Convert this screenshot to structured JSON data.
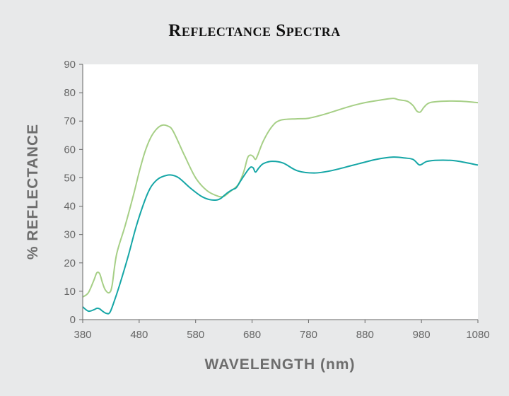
{
  "chart_data": {
    "type": "line",
    "title": "Reflectance Spectra",
    "xlabel": "WAVELENGTH (nm)",
    "ylabel": "% REFLECTANCE",
    "xlim": [
      380,
      1080
    ],
    "ylim": [
      0,
      90
    ],
    "xticks": [
      380,
      480,
      580,
      680,
      780,
      880,
      980,
      1080
    ],
    "yticks": [
      0,
      10,
      20,
      30,
      40,
      50,
      60,
      70,
      80,
      90
    ],
    "grid": false,
    "series": [
      {
        "color": "#a6cf86",
        "points": [
          [
            380,
            8
          ],
          [
            390,
            9.5
          ],
          [
            400,
            14
          ],
          [
            405,
            16.5
          ],
          [
            410,
            16.2
          ],
          [
            415,
            13
          ],
          [
            420,
            10.5
          ],
          [
            427,
            9.5
          ],
          [
            432,
            12
          ],
          [
            440,
            23
          ],
          [
            455,
            33
          ],
          [
            470,
            44
          ],
          [
            480,
            52
          ],
          [
            490,
            59
          ],
          [
            500,
            64
          ],
          [
            510,
            67
          ],
          [
            520,
            68.5
          ],
          [
            530,
            68.3
          ],
          [
            540,
            66.5
          ],
          [
            560,
            58
          ],
          [
            580,
            50
          ],
          [
            600,
            45.5
          ],
          [
            620,
            43.5
          ],
          [
            630,
            43.5
          ],
          [
            640,
            45
          ],
          [
            655,
            47.5
          ],
          [
            665,
            52
          ],
          [
            672,
            57
          ],
          [
            677,
            58
          ],
          [
            682,
            57.5
          ],
          [
            686,
            56.5
          ],
          [
            690,
            58
          ],
          [
            700,
            63
          ],
          [
            715,
            68
          ],
          [
            730,
            70.3
          ],
          [
            760,
            70.8
          ],
          [
            780,
            71
          ],
          [
            810,
            72.5
          ],
          [
            850,
            75
          ],
          [
            880,
            76.5
          ],
          [
            910,
            77.5
          ],
          [
            930,
            78
          ],
          [
            940,
            77.5
          ],
          [
            955,
            77
          ],
          [
            965,
            75.5
          ],
          [
            972,
            73.5
          ],
          [
            978,
            73.2
          ],
          [
            985,
            75
          ],
          [
            995,
            76.5
          ],
          [
            1020,
            77
          ],
          [
            1050,
            77
          ],
          [
            1080,
            76.5
          ]
        ]
      },
      {
        "color": "#15a6a6",
        "points": [
          [
            380,
            4.5
          ],
          [
            390,
            3
          ],
          [
            400,
            3.5
          ],
          [
            405,
            4
          ],
          [
            410,
            3.8
          ],
          [
            415,
            3
          ],
          [
            422,
            2.2
          ],
          [
            428,
            2.5
          ],
          [
            435,
            6
          ],
          [
            445,
            12
          ],
          [
            460,
            22
          ],
          [
            475,
            33
          ],
          [
            490,
            42
          ],
          [
            500,
            46.5
          ],
          [
            510,
            49
          ],
          [
            520,
            50.3
          ],
          [
            535,
            51
          ],
          [
            550,
            50
          ],
          [
            570,
            46.5
          ],
          [
            590,
            43.5
          ],
          [
            605,
            42.3
          ],
          [
            618,
            42.2
          ],
          [
            625,
            42.8
          ],
          [
            635,
            44.5
          ],
          [
            645,
            45.8
          ],
          [
            652,
            46.5
          ],
          [
            660,
            49
          ],
          [
            670,
            52
          ],
          [
            677,
            53.7
          ],
          [
            682,
            53.5
          ],
          [
            686,
            52
          ],
          [
            692,
            53.5
          ],
          [
            700,
            55
          ],
          [
            715,
            55.8
          ],
          [
            735,
            55.2
          ],
          [
            760,
            52.5
          ],
          [
            790,
            51.7
          ],
          [
            820,
            52.5
          ],
          [
            860,
            54.5
          ],
          [
            900,
            56.5
          ],
          [
            930,
            57.3
          ],
          [
            950,
            57
          ],
          [
            965,
            56.5
          ],
          [
            975,
            54.7
          ],
          [
            980,
            54.7
          ],
          [
            990,
            55.8
          ],
          [
            1010,
            56.2
          ],
          [
            1040,
            56
          ],
          [
            1080,
            54.5
          ]
        ]
      }
    ]
  }
}
